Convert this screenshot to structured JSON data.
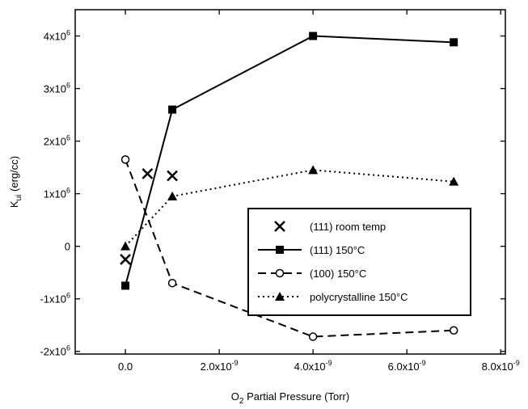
{
  "chart_data": {
    "type": "line",
    "x_label": "O2 Partial Pressure (Torr)",
    "y_label": "Kui (erg/cc)",
    "xlim": [
      -1.07e-09,
      8.1e-09
    ],
    "ylim": [
      -2050000.0,
      4500000.0
    ],
    "xticks": [
      {
        "value": 0,
        "label": "0.0"
      },
      {
        "value": 2e-09,
        "label": "2.0x10-9"
      },
      {
        "value": 4e-09,
        "label": "4.0x10-9"
      },
      {
        "value": 6e-09,
        "label": "6.0x10-9"
      },
      {
        "value": 8e-09,
        "label": "8.0x10-9"
      }
    ],
    "yticks": [
      {
        "value": -2000000.0,
        "label": "-2x106"
      },
      {
        "value": -1000000.0,
        "label": "-1x106"
      },
      0,
      {
        "value": 1000000.0,
        "label": "1x106"
      },
      {
        "value": 2000000.0,
        "label": "2x106"
      },
      {
        "value": 3000000.0,
        "label": "3x106"
      },
      {
        "value": 4000000.0,
        "label": "4x106"
      }
    ],
    "series": [
      {
        "name": "(111) room temp",
        "color": "#000000",
        "marker": "x",
        "line": "none",
        "x": [
          0,
          4.7e-10,
          1e-09
        ],
        "values": [
          -250000.0,
          1380000.0,
          1340000.0
        ]
      },
      {
        "name": "(111) 150°C",
        "color": "#000000",
        "marker": "square",
        "line": "solid",
        "x": [
          0,
          1e-09,
          4e-09,
          7e-09
        ],
        "values": [
          -750000.0,
          2600000.0,
          4000000.0,
          3880000.0
        ]
      },
      {
        "name": "(100) 150°C",
        "color": "#000000",
        "marker": "circle",
        "line": "dashed",
        "x": [
          0,
          1e-09,
          4e-09,
          7e-09
        ],
        "values": [
          1650000.0,
          -700000.0,
          -1720000.0,
          -1600000.0
        ]
      },
      {
        "name": "polycrystalline 150°C",
        "color": "#000000",
        "marker": "triangle",
        "line": "dotted",
        "x": [
          0,
          1e-09,
          4e-09,
          7e-09
        ],
        "values": [
          0,
          950000.0,
          1450000.0,
          1230000.0
        ]
      }
    ]
  }
}
